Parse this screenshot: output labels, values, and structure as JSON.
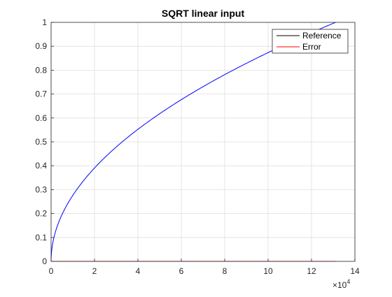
{
  "chart_data": {
    "type": "line",
    "title": "SQRT linear input",
    "xlabel": "",
    "ylabel": "",
    "x_exponent_label": "×10",
    "x_exponent_power": "4",
    "xlim": [
      0,
      140000
    ],
    "ylim": [
      0,
      1
    ],
    "x_ticks": [
      0,
      20000,
      40000,
      60000,
      80000,
      100000,
      120000,
      140000
    ],
    "x_tick_labels": [
      "0",
      "2",
      "4",
      "6",
      "8",
      "10",
      "12",
      "14"
    ],
    "y_ticks": [
      0,
      0.1,
      0.2,
      0.3,
      0.4,
      0.5,
      0.6,
      0.7,
      0.8,
      0.9,
      1
    ],
    "y_tick_labels": [
      "0",
      "0.1",
      "0.2",
      "0.3",
      "0.4",
      "0.5",
      "0.6",
      "0.7",
      "0.8",
      "0.9",
      "1"
    ],
    "grid": true,
    "legend_location": "top-right",
    "legend": [
      {
        "label": "Reference",
        "color": "#000000"
      },
      {
        "label": "Error",
        "color": "#ff0000"
      }
    ],
    "series": [
      {
        "color": "#0000ff",
        "kind": "sqrt",
        "x_max": 131072,
        "x": [
          0,
          131072
        ],
        "y": [
          0,
          1
        ]
      },
      {
        "color": "#000000",
        "kind": "line",
        "x": [
          0,
          131072
        ],
        "y": [
          0,
          0
        ]
      },
      {
        "color": "#ff0000",
        "kind": "line",
        "x": [
          0,
          131072
        ],
        "y": [
          0,
          0
        ]
      }
    ]
  }
}
